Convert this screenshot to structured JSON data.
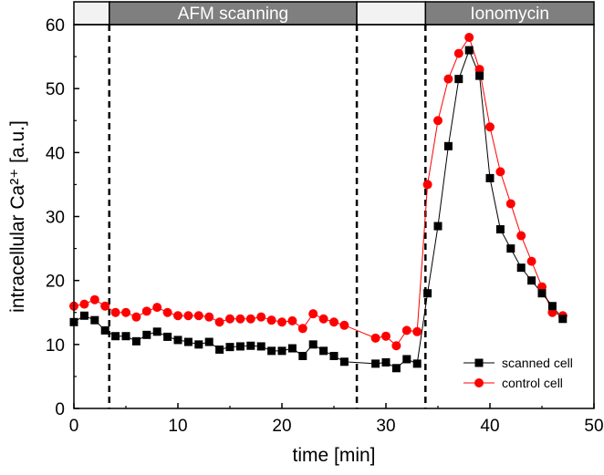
{
  "chart_data": {
    "type": "scatter",
    "title": "",
    "xlabel": "time [min]",
    "ylabel": "intracellular Ca²⁺ [a.u.]",
    "xlim": [
      0,
      50
    ],
    "ylim": [
      0,
      60
    ],
    "xticks": [
      0,
      10,
      20,
      30,
      40,
      50
    ],
    "yticks": [
      0,
      10,
      20,
      30,
      40,
      50,
      60
    ],
    "grid": false,
    "legend_position": "bottom-right",
    "phases": [
      {
        "label": "",
        "start": 0,
        "end": 3.4,
        "fill": "#f2f2f2"
      },
      {
        "label": "AFM scanning",
        "start": 3.4,
        "end": 27.2,
        "fill": "#7f7f7f"
      },
      {
        "label": "",
        "start": 27.2,
        "end": 33.8,
        "fill": "#f2f2f2"
      },
      {
        "label": "Ionomycin",
        "start": 33.8,
        "end": 50,
        "fill": "#7f7f7f"
      }
    ],
    "vlines": [
      3.4,
      27.2,
      33.8
    ],
    "series": [
      {
        "name": "scanned cell",
        "color": "#000000",
        "marker": "square",
        "x": [
          0,
          1,
          2,
          3,
          4,
          5,
          6,
          7,
          8,
          9,
          10,
          11,
          12,
          13,
          14,
          15,
          16,
          17,
          18,
          19,
          20,
          21,
          22,
          23,
          24,
          25,
          26,
          29,
          30,
          31,
          32,
          33,
          34,
          35,
          36,
          37,
          38,
          39,
          40,
          41,
          42,
          43,
          44,
          45,
          46,
          47
        ],
        "y": [
          13.5,
          14.5,
          13.8,
          12.2,
          11.3,
          11.3,
          10.5,
          11.5,
          12.0,
          11.2,
          10.7,
          10.4,
          10.0,
          10.4,
          9.2,
          9.6,
          9.7,
          9.8,
          9.7,
          9.0,
          9.0,
          9.4,
          8.2,
          10.0,
          9.0,
          8.2,
          7.3,
          7.0,
          7.2,
          6.3,
          7.7,
          7.0,
          18.0,
          28.5,
          41.0,
          51.5,
          56.0,
          52.0,
          36.0,
          28.0,
          25.0,
          22.0,
          20.0,
          18.0,
          16.0,
          14.0
        ]
      },
      {
        "name": "control cell",
        "color": "#ff0000",
        "marker": "circle",
        "x": [
          0,
          1,
          2,
          3,
          4,
          5,
          6,
          7,
          8,
          9,
          10,
          11,
          12,
          13,
          14,
          15,
          16,
          17,
          18,
          19,
          20,
          21,
          22,
          23,
          24,
          25,
          26,
          29,
          30,
          31,
          32,
          33,
          34,
          35,
          36,
          37,
          38,
          39,
          40,
          41,
          42,
          43,
          44,
          45,
          46,
          47
        ],
        "y": [
          16.0,
          16.3,
          17.0,
          16.0,
          15.0,
          15.0,
          14.3,
          15.2,
          15.8,
          15.0,
          14.5,
          14.5,
          14.5,
          14.3,
          13.5,
          14.0,
          14.0,
          14.0,
          14.3,
          13.8,
          13.5,
          13.7,
          12.5,
          14.8,
          14.0,
          13.5,
          13.0,
          11.0,
          11.3,
          9.8,
          12.2,
          12.0,
          35.0,
          45.0,
          51.5,
          55.5,
          58.0,
          53.0,
          44.0,
          37.0,
          32.0,
          27.0,
          23.0,
          19.0,
          15.0,
          14.5
        ]
      }
    ]
  }
}
